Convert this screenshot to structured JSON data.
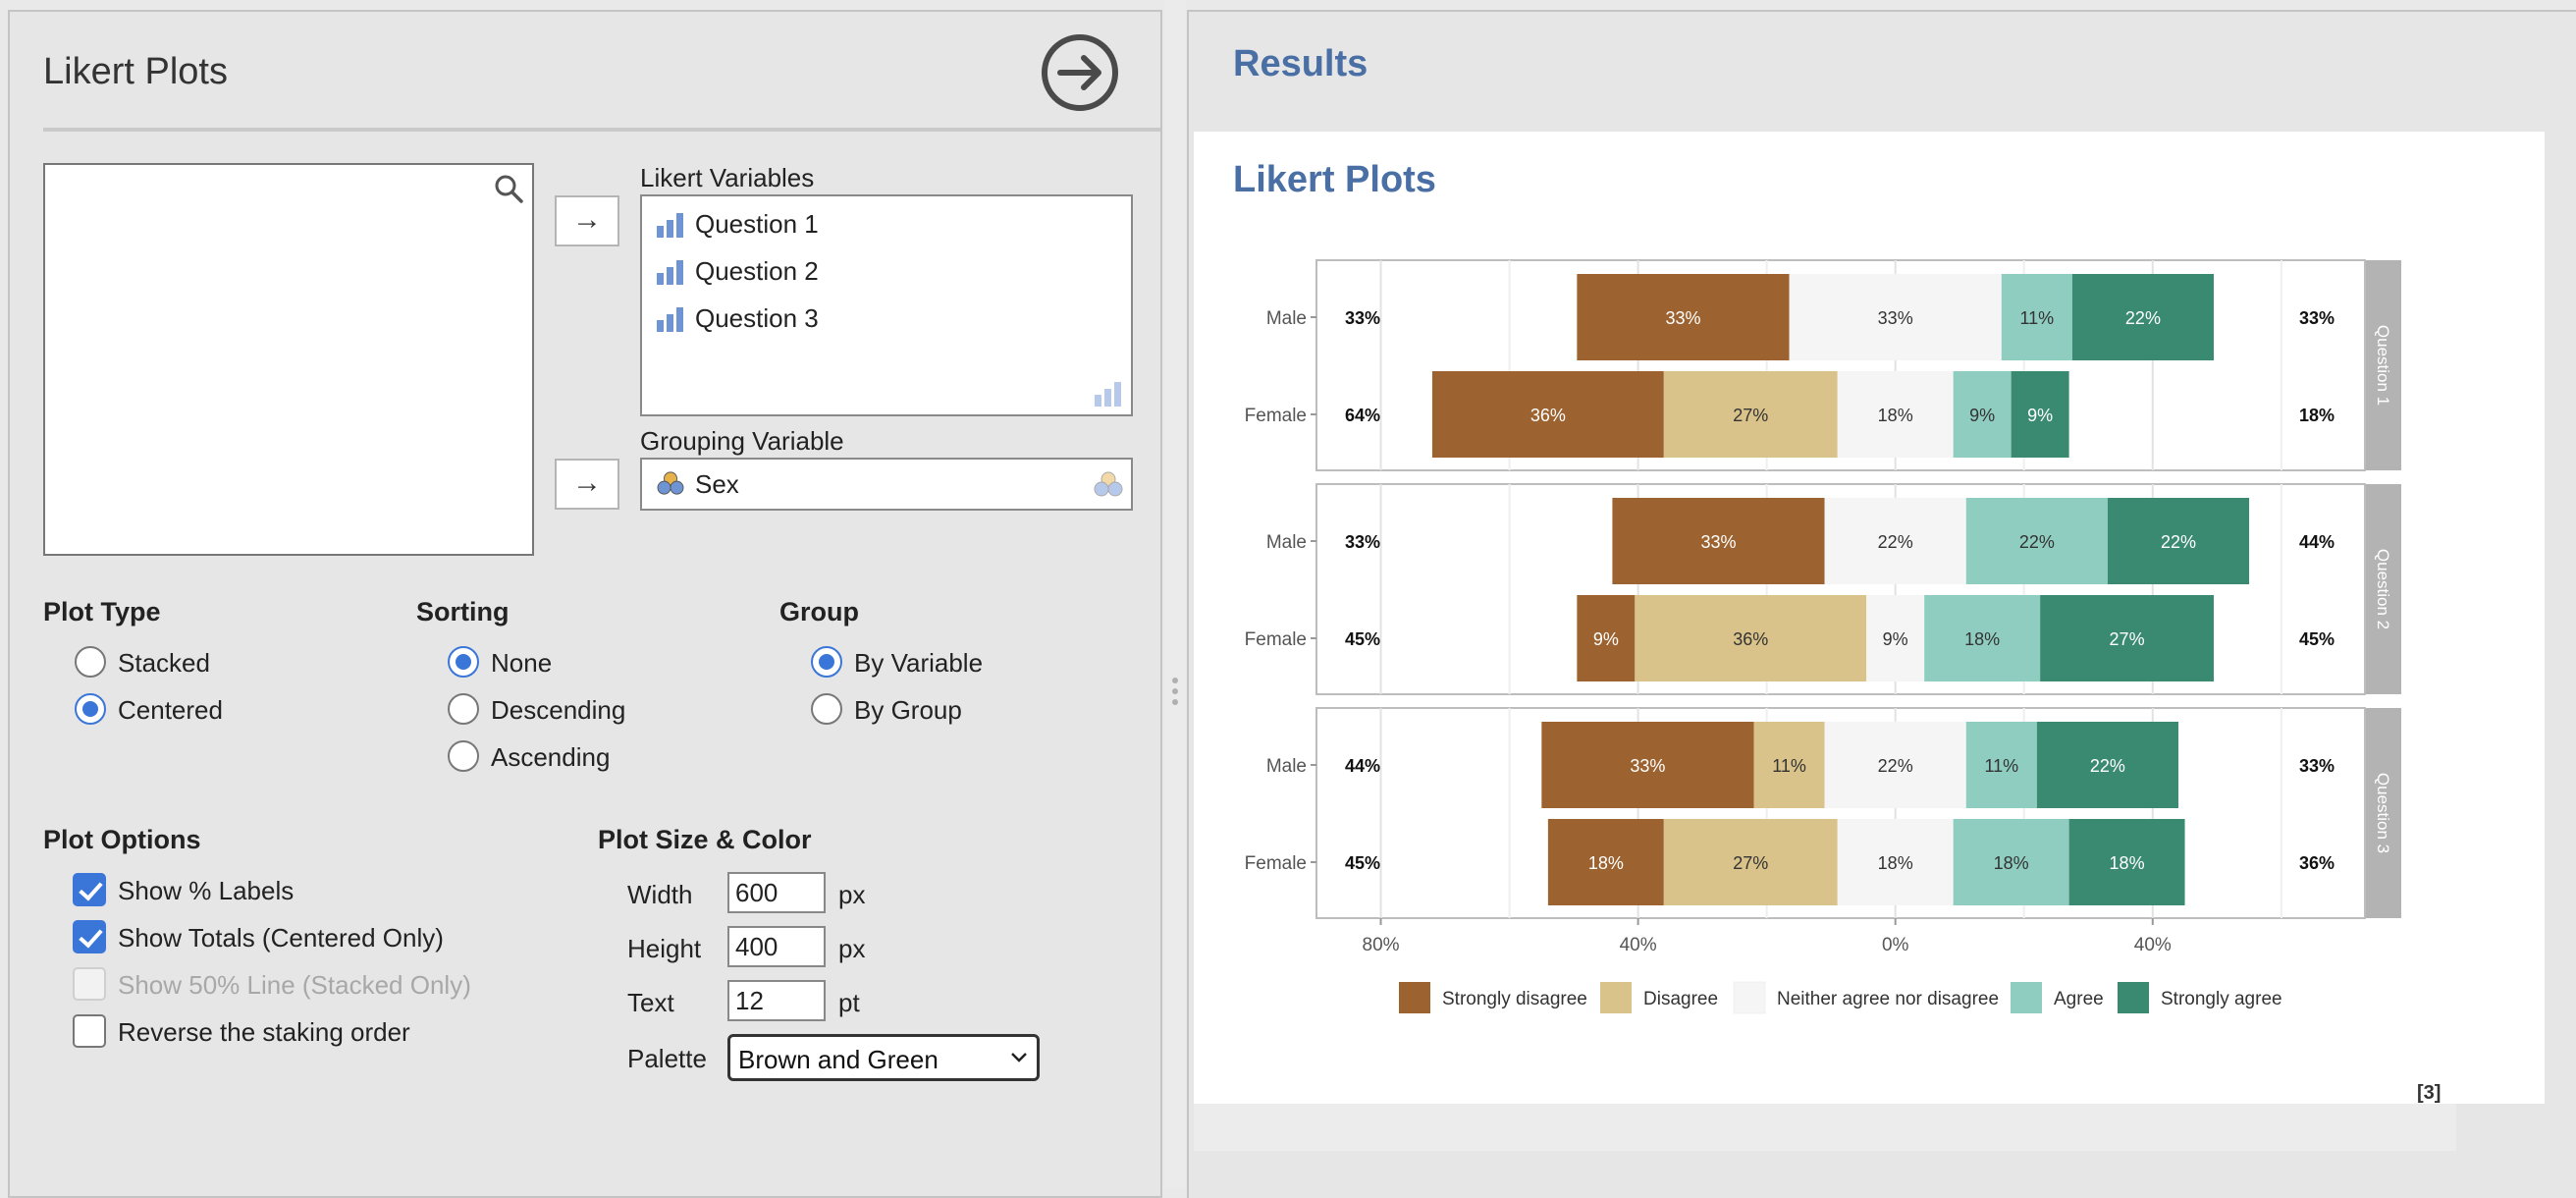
{
  "left": {
    "title": "Likert Plots",
    "likert_vars_label": "Likert Variables",
    "likert_vars": [
      "Question 1",
      "Question 2",
      "Question 3"
    ],
    "grouping_label": "Grouping Variable",
    "grouping_var": "Sex",
    "plot_type": {
      "title": "Plot Type",
      "options": [
        "Stacked",
        "Centered"
      ],
      "selected": "Centered"
    },
    "sorting": {
      "title": "Sorting",
      "options": [
        "None",
        "Descending",
        "Ascending"
      ],
      "selected": "None"
    },
    "group": {
      "title": "Group",
      "options": [
        "By Variable",
        "By Group"
      ],
      "selected": "By Variable"
    },
    "plot_options": {
      "title": "Plot Options",
      "items": [
        {
          "label": "Show % Labels",
          "checked": true,
          "enabled": true
        },
        {
          "label": "Show Totals (Centered Only)",
          "checked": true,
          "enabled": true
        },
        {
          "label": "Show 50% Line (Stacked Only)",
          "checked": false,
          "enabled": false
        },
        {
          "label": "Reverse the staking order",
          "checked": false,
          "enabled": true
        }
      ]
    },
    "size_color": {
      "title": "Plot Size & Color",
      "width_label": "Width",
      "width_value": "600",
      "width_unit": "px",
      "height_label": "Height",
      "height_value": "400",
      "height_unit": "px",
      "text_label": "Text",
      "text_value": "12",
      "text_unit": "pt",
      "palette_label": "Palette",
      "palette_value": "Brown and Green"
    }
  },
  "results": {
    "header": "Results",
    "title": "Likert Plots",
    "ref": "[3]"
  },
  "chart_data": {
    "type": "bar",
    "orientation": "horizontal",
    "layout": "diverging-centered",
    "categories_levels": [
      "Strongly disagree",
      "Disagree",
      "Neither agree nor disagree",
      "Agree",
      "Strongly agree"
    ],
    "colors": [
      "#9c6330",
      "#d9c38a",
      "#f5f5f5",
      "#8fcdc1",
      "#3a8a72"
    ],
    "x_ticks": [
      -80,
      -40,
      0,
      40
    ],
    "x_tick_labels": [
      "80%",
      "40%",
      "0%",
      "40%"
    ],
    "xlim": [
      -90,
      73
    ],
    "legend": {
      "position": "bottom",
      "entries": [
        "Strongly disagree",
        "Disagree",
        "Neither agree nor disagree",
        "Agree",
        "Strongly agree"
      ]
    },
    "panels": [
      {
        "label": "Question 1",
        "rows": [
          {
            "group": "Male",
            "values": [
              33,
              0,
              33,
              11,
              22
            ],
            "labels": [
              "33%",
              "",
              "33%",
              "11%",
              "22%"
            ],
            "left_total": "33%",
            "right_total": "33%"
          },
          {
            "group": "Female",
            "values": [
              36,
              27,
              18,
              9,
              9
            ],
            "labels": [
              "36%",
              "27%",
              "18%",
              "9%",
              "9%"
            ],
            "left_total": "64%",
            "right_total": "18%"
          }
        ]
      },
      {
        "label": "Question 2",
        "rows": [
          {
            "group": "Male",
            "values": [
              33,
              0,
              22,
              22,
              22
            ],
            "labels": [
              "33%",
              "",
              "22%",
              "22%",
              "22%"
            ],
            "left_total": "33%",
            "right_total": "44%"
          },
          {
            "group": "Female",
            "values": [
              9,
              36,
              9,
              18,
              27
            ],
            "labels": [
              "9%",
              "36%",
              "9%",
              "18%",
              "27%"
            ],
            "left_total": "45%",
            "right_total": "45%"
          }
        ]
      },
      {
        "label": "Question 3",
        "rows": [
          {
            "group": "Male",
            "values": [
              33,
              11,
              22,
              11,
              22
            ],
            "labels": [
              "33%",
              "11%",
              "22%",
              "11%",
              "22%"
            ],
            "left_total": "44%",
            "right_total": "33%"
          },
          {
            "group": "Female",
            "values": [
              18,
              27,
              18,
              18,
              18
            ],
            "labels": [
              "18%",
              "27%",
              "18%",
              "18%",
              "18%"
            ],
            "left_total": "45%",
            "right_total": "36%"
          }
        ]
      }
    ]
  }
}
